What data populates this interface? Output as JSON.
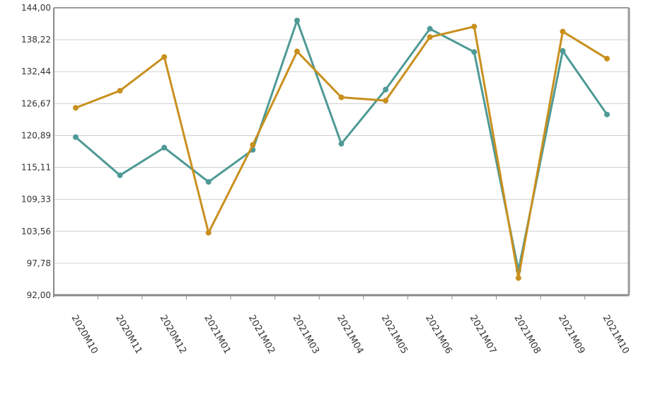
{
  "chart_data": {
    "type": "line",
    "title": "",
    "xlabel": "",
    "ylabel": "",
    "categories": [
      "2020M10",
      "2020M11",
      "2020M12",
      "2021M01",
      "2021M02",
      "2021M03",
      "2021M04",
      "2021M05",
      "2021M06",
      "2021M07",
      "2021M08",
      "2021M09",
      "2021M10"
    ],
    "y_ticks": [
      "92,00",
      "97,78",
      "103,56",
      "109,33",
      "115,11",
      "120,89",
      "126,67",
      "132,44",
      "138,22",
      "144,00"
    ],
    "ylim": [
      92.0,
      144.0
    ],
    "grid": true,
    "legend": "none",
    "series": [
      {
        "color": "#4e9a96",
        "values": [
          120.6,
          113.7,
          118.7,
          112.5,
          118.3,
          141.7,
          119.4,
          129.2,
          140.2,
          136.0,
          96.5,
          136.2,
          124.7
        ]
      },
      {
        "color": "#c8901e",
        "values": [
          125.9,
          129.0,
          135.1,
          103.3,
          119.2,
          136.1,
          127.8,
          127.2,
          138.7,
          140.6,
          95.1,
          139.7,
          134.8
        ]
      }
    ]
  }
}
